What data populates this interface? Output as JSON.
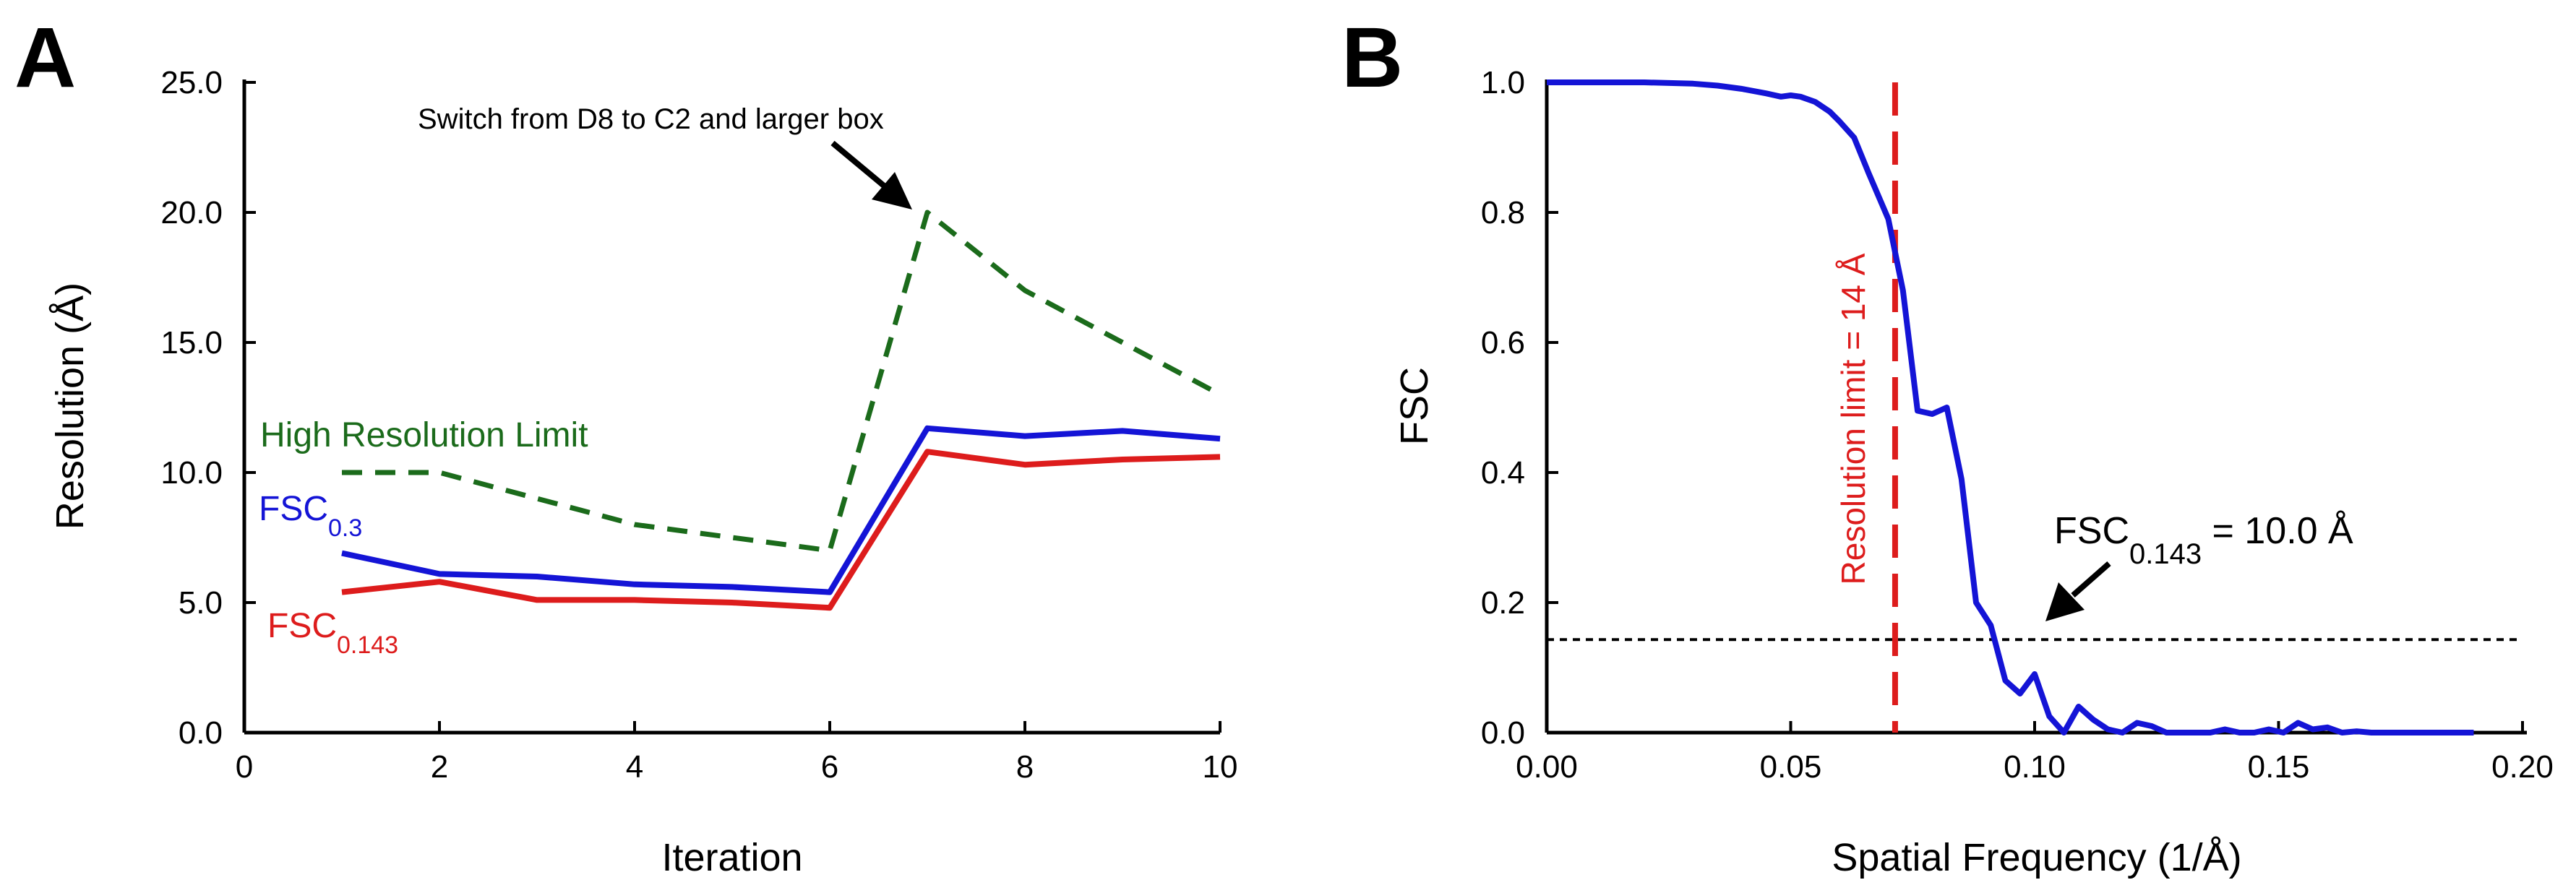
{
  "chart_data": [
    {
      "panel_label": "A",
      "type": "line",
      "xlabel": "Iteration",
      "ylabel": "Resolution (Å)",
      "xlim": [
        0,
        10
      ],
      "ylim": [
        0,
        25
      ],
      "xticks": [
        "0",
        "2",
        "4",
        "6",
        "8",
        "10"
      ],
      "yticks": [
        "0.0",
        "5.0",
        "10.0",
        "15.0",
        "20.0",
        "25.0"
      ],
      "grid": false,
      "series": [
        {
          "name": "High Resolution Limit",
          "color": "#1b6b1b",
          "dash": true,
          "x": [
            1,
            2,
            3,
            4,
            5,
            6,
            7,
            8,
            9,
            10
          ],
          "y": [
            10.0,
            10.0,
            9.0,
            8.0,
            7.5,
            7.0,
            20.0,
            17.0,
            15.0,
            13.0
          ]
        },
        {
          "name": "FSC",
          "name_sub": "0.3",
          "color": "#1414d6",
          "dash": false,
          "x": [
            1,
            2,
            3,
            4,
            5,
            6,
            7,
            8,
            9,
            10
          ],
          "y": [
            6.9,
            6.1,
            6.0,
            5.7,
            5.6,
            5.4,
            11.7,
            11.4,
            11.6,
            11.3
          ]
        },
        {
          "name": "FSC",
          "name_sub": "0.143",
          "color": "#dd1c1c",
          "dash": false,
          "x": [
            1,
            2,
            3,
            4,
            5,
            6,
            7,
            8,
            9,
            10
          ],
          "y": [
            5.4,
            5.8,
            5.1,
            5.1,
            5.0,
            4.8,
            10.8,
            10.3,
            10.5,
            10.6
          ]
        }
      ],
      "annotations": [
        {
          "text": "Switch from D8 to C2 and larger box",
          "point_x": 7,
          "point_y": 20.0
        }
      ]
    },
    {
      "panel_label": "B",
      "type": "line",
      "xlabel": "Spatial Frequency (1/Å)",
      "ylabel": "FSC",
      "xlim": [
        0,
        0.2
      ],
      "ylim": [
        0,
        1.0
      ],
      "xticks": [
        "0.00",
        "0.05",
        "0.10",
        "0.15",
        "0.20"
      ],
      "yticks": [
        "0.0",
        "0.2",
        "0.4",
        "0.6",
        "0.8",
        "1.0"
      ],
      "grid": false,
      "series": [
        {
          "color": "#1414d6",
          "x": [
            0.0,
            0.01,
            0.02,
            0.03,
            0.035,
            0.04,
            0.045,
            0.048,
            0.05,
            0.052,
            0.055,
            0.058,
            0.06,
            0.063,
            0.066,
            0.07,
            0.073,
            0.076,
            0.079,
            0.082,
            0.085,
            0.088,
            0.091,
            0.094,
            0.097,
            0.1,
            0.103,
            0.106,
            0.109,
            0.112,
            0.115,
            0.118,
            0.121,
            0.124,
            0.127,
            0.13,
            0.133,
            0.136,
            0.139,
            0.142,
            0.145,
            0.148,
            0.151,
            0.154,
            0.157,
            0.16,
            0.163,
            0.166,
            0.169,
            0.172,
            0.175,
            0.178,
            0.181,
            0.184,
            0.187,
            0.19
          ],
          "y": [
            1.0,
            1.0,
            1.0,
            0.998,
            0.995,
            0.99,
            0.983,
            0.978,
            0.98,
            0.978,
            0.97,
            0.955,
            0.94,
            0.915,
            0.86,
            0.79,
            0.68,
            0.495,
            0.49,
            0.5,
            0.39,
            0.2,
            0.165,
            0.08,
            0.06,
            0.09,
            0.025,
            0.0,
            0.04,
            0.02,
            0.005,
            0.0,
            0.015,
            0.01,
            0.0,
            0.0,
            0.0,
            0.0,
            0.005,
            0.0,
            0.0,
            0.005,
            0.0,
            0.015,
            0.005,
            0.008,
            0.0,
            0.002,
            0.0,
            0.0,
            0.0,
            0.0,
            0.0,
            0.0,
            0.0,
            0.0
          ]
        }
      ],
      "threshold_line": {
        "y": 0.143,
        "color": "#000000"
      },
      "resolution_limit_line": {
        "x": 0.0714,
        "color": "#dd1c1c",
        "label": "Resolution limit = 14 Å"
      },
      "annotations": [
        {
          "text": "FSC",
          "text_sub": "0.143",
          "text_tail": " = 10.0 Å",
          "point_x": 0.1,
          "point_y": 0.143
        }
      ]
    }
  ]
}
